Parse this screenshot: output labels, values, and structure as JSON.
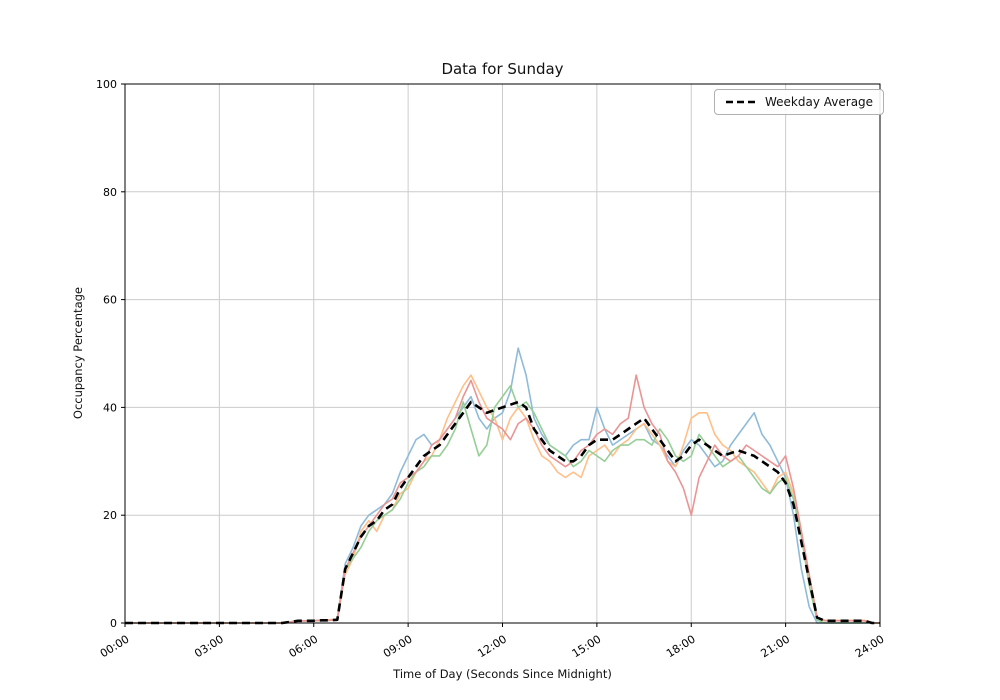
{
  "chart_data": {
    "type": "line",
    "title": "Data for Sunday",
    "xlabel": "Time of Day (Seconds Since Midnight)",
    "ylabel": "Occupancy Percentage",
    "xlim": [
      0,
      24
    ],
    "ylim": [
      0,
      100
    ],
    "grid": true,
    "x_unit": "hours",
    "legend": {
      "entries": [
        "Weekday Average"
      ],
      "position": "upper right"
    },
    "xticks": {
      "values": [
        0,
        3,
        6,
        9,
        12,
        15,
        18,
        21,
        24
      ],
      "labels": [
        "00:00",
        "03:00",
        "06:00",
        "09:00",
        "12:00",
        "15:00",
        "18:00",
        "21:00",
        "24:00"
      ]
    },
    "yticks": {
      "values": [
        0,
        20,
        40,
        60,
        80,
        100
      ],
      "labels": [
        "0",
        "20",
        "40",
        "60",
        "80",
        "100"
      ]
    },
    "x": [
      0,
      2,
      4,
      5,
      5.5,
      5.75,
      6,
      6.25,
      6.5,
      6.75,
      7,
      7.25,
      7.5,
      7.75,
      8,
      8.25,
      8.5,
      8.75,
      9,
      9.25,
      9.5,
      9.75,
      10,
      10.25,
      10.5,
      10.75,
      11,
      11.25,
      11.5,
      11.75,
      12,
      12.25,
      12.5,
      12.75,
      13,
      13.25,
      13.5,
      13.75,
      14,
      14.25,
      14.5,
      14.75,
      15,
      15.25,
      15.5,
      15.75,
      16,
      16.25,
      16.5,
      16.75,
      17,
      17.25,
      17.5,
      17.75,
      18,
      18.25,
      18.5,
      18.75,
      19,
      19.25,
      19.5,
      19.75,
      20,
      20.25,
      20.5,
      20.75,
      21,
      21.25,
      21.5,
      21.75,
      22,
      22.25,
      22.5,
      23,
      23.5,
      23.75,
      24
    ],
    "series": [
      {
        "name": "series-1",
        "color": "#8fbbd9",
        "values": [
          0,
          0,
          0,
          0,
          0.4,
          0.4,
          0.4,
          0.5,
          0.5,
          0.7,
          11,
          14,
          18,
          20,
          21,
          22,
          24,
          28,
          31,
          34,
          35,
          33,
          34,
          36,
          38,
          40,
          42,
          38,
          36,
          38,
          39,
          43,
          51,
          46,
          38,
          35,
          33,
          32,
          31,
          33,
          34,
          34,
          40,
          36,
          33,
          34,
          35,
          36,
          37,
          34,
          33,
          31,
          29,
          32,
          34,
          33,
          31,
          29,
          30,
          33,
          35,
          37,
          39,
          35,
          33,
          30,
          27,
          20,
          10,
          3,
          0,
          0,
          0,
          0,
          0,
          0,
          0
        ]
      },
      {
        "name": "series-2",
        "color": "#ffbf87",
        "values": [
          0,
          0,
          0,
          0,
          0.4,
          0.4,
          0.4,
          0.5,
          0.6,
          0.7,
          9,
          12,
          17,
          19,
          17,
          20,
          21,
          24,
          25,
          28,
          30,
          31,
          34,
          38,
          41,
          44,
          46,
          43,
          40,
          38,
          34,
          38,
          40,
          38,
          34,
          31,
          30,
          28,
          27,
          28,
          27,
          31,
          32,
          33,
          31,
          33,
          34,
          36,
          37,
          35,
          33,
          30,
          29,
          33,
          38,
          39,
          39,
          35,
          33,
          32,
          30,
          29,
          28,
          26,
          24,
          27,
          28,
          24,
          17,
          9,
          1,
          0.5,
          0.5,
          0.5,
          0.5,
          0,
          0
        ]
      },
      {
        "name": "series-3",
        "color": "#96cf96",
        "values": [
          0,
          0,
          0,
          0,
          0.4,
          0.4,
          0.4,
          0.5,
          0.5,
          0.6,
          10,
          12,
          14,
          17,
          19,
          20,
          21,
          23,
          26,
          28,
          29,
          31,
          31,
          33,
          36,
          41,
          36,
          31,
          33,
          40,
          42,
          44,
          40,
          41,
          39,
          36,
          33,
          32,
          31,
          29,
          30,
          32,
          31,
          30,
          32,
          33,
          33,
          34,
          34,
          33,
          36,
          34,
          31,
          30,
          31,
          35,
          33,
          31,
          29,
          30,
          31,
          29,
          27,
          25,
          24,
          26,
          27,
          23,
          16,
          7,
          0.5,
          0,
          0,
          0,
          0,
          0,
          0
        ]
      },
      {
        "name": "series-4",
        "color": "#ea9494",
        "values": [
          0,
          0,
          0,
          0,
          0.4,
          0.4,
          0.4,
          0.5,
          0.5,
          0.6,
          10,
          13,
          16,
          18,
          20,
          22,
          23,
          26,
          27,
          28,
          30,
          33,
          34,
          36,
          38,
          42,
          45,
          41,
          38,
          37,
          36,
          34,
          37,
          38,
          36,
          33,
          31,
          30,
          29,
          30,
          32,
          33,
          35,
          36,
          35,
          37,
          38,
          46,
          40,
          37,
          35,
          30,
          28,
          25,
          20,
          27,
          30,
          33,
          31,
          30,
          31,
          33,
          32,
          31,
          30,
          29,
          31,
          25,
          17,
          9,
          1,
          0.4,
          0.4,
          0.4,
          0.4,
          0,
          0
        ]
      }
    ],
    "average": {
      "name": "Weekday Average",
      "color": "#000000",
      "dashed": true,
      "values": [
        0,
        0,
        0,
        0,
        0.4,
        0.4,
        0.4,
        0.5,
        0.5,
        0.6,
        10,
        13,
        16,
        18,
        19,
        21,
        22,
        25,
        27,
        29,
        31,
        32,
        33,
        35,
        37,
        39,
        41,
        40,
        39,
        39.5,
        40,
        40.5,
        41,
        40,
        36,
        34,
        32,
        31,
        30,
        30,
        31,
        33,
        34,
        34,
        34,
        35,
        36,
        37,
        38,
        36,
        34,
        32,
        30,
        31,
        33,
        34,
        33,
        32,
        31,
        31.5,
        32,
        31.5,
        31,
        30,
        29,
        28,
        26,
        22,
        15,
        8,
        1,
        0.4,
        0.4,
        0.4,
        0.4,
        0,
        0
      ]
    },
    "style": {
      "grid_color": "#cccccc",
      "spine_color": "#000000",
      "background": "#ffffff"
    }
  }
}
